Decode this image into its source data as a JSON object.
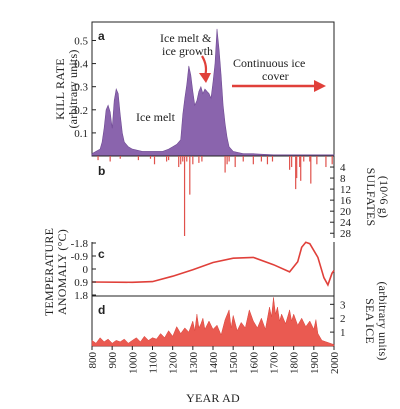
{
  "chart_data": [
    {
      "panel": "a",
      "type": "area",
      "ylabel": "KILL RATE",
      "ylabel_units": "(arbitrary units)",
      "yticks": [
        "0.1",
        "0.2",
        "0.3",
        "0.4",
        "0.5"
      ],
      "ylim": [
        0,
        0.58
      ],
      "color": "#8a64ad",
      "annotations": {
        "ice_melt": "Ice melt",
        "ice_melt_growth_1": "Ice melt &",
        "ice_melt_growth_2": "ice growth",
        "continuous_1": "Continuous ice",
        "continuous_2": "cover"
      },
      "points": [
        [
          800,
          0.01
        ],
        [
          820,
          0.02
        ],
        [
          840,
          0.03
        ],
        [
          850,
          0.06
        ],
        [
          860,
          0.12
        ],
        [
          870,
          0.2
        ],
        [
          880,
          0.22
        ],
        [
          890,
          0.19
        ],
        [
          900,
          0.12
        ],
        [
          910,
          0.24
        ],
        [
          920,
          0.29
        ],
        [
          930,
          0.27
        ],
        [
          940,
          0.18
        ],
        [
          950,
          0.1
        ],
        [
          960,
          0.06
        ],
        [
          980,
          0.04
        ],
        [
          1000,
          0.03
        ],
        [
          1050,
          0.02
        ],
        [
          1100,
          0.02
        ],
        [
          1150,
          0.02
        ],
        [
          1180,
          0.03
        ],
        [
          1200,
          0.04
        ],
        [
          1220,
          0.05
        ],
        [
          1240,
          0.07
        ],
        [
          1250,
          0.18
        ],
        [
          1260,
          0.25
        ],
        [
          1270,
          0.31
        ],
        [
          1280,
          0.39
        ],
        [
          1290,
          0.35
        ],
        [
          1300,
          0.28
        ],
        [
          1310,
          0.22
        ],
        [
          1320,
          0.24
        ],
        [
          1330,
          0.28
        ],
        [
          1340,
          0.3
        ],
        [
          1350,
          0.27
        ],
        [
          1360,
          0.29
        ],
        [
          1370,
          0.28
        ],
        [
          1380,
          0.27
        ],
        [
          1390,
          0.25
        ],
        [
          1400,
          0.32
        ],
        [
          1410,
          0.4
        ],
        [
          1420,
          0.55
        ],
        [
          1430,
          0.46
        ],
        [
          1440,
          0.35
        ],
        [
          1450,
          0.22
        ],
        [
          1460,
          0.14
        ],
        [
          1470,
          0.08
        ],
        [
          1480,
          0.04
        ],
        [
          1500,
          0.02
        ],
        [
          1550,
          0.01
        ],
        [
          1600,
          0.01
        ],
        [
          1700,
          0.005
        ],
        [
          1800,
          0.005
        ],
        [
          1900,
          0.005
        ],
        [
          2000,
          0.005
        ]
      ]
    },
    {
      "panel": "b",
      "type": "bar",
      "ylabel": "SULFATES",
      "ylabel_units": "(10^6 g)",
      "yticks": [
        "4",
        "8",
        "12",
        "16",
        "20",
        "24",
        "28"
      ],
      "ylim": [
        0,
        29
      ],
      "color": "#e0514b",
      "events": [
        [
          830,
          1.5
        ],
        [
          890,
          2
        ],
        [
          940,
          1
        ],
        [
          1030,
          1.5
        ],
        [
          1090,
          1
        ],
        [
          1110,
          3
        ],
        [
          1170,
          2
        ],
        [
          1180,
          1.5
        ],
        [
          1230,
          4
        ],
        [
          1240,
          3
        ],
        [
          1250,
          2
        ],
        [
          1259,
          29
        ],
        [
          1270,
          2
        ],
        [
          1285,
          14
        ],
        [
          1300,
          3
        ],
        [
          1330,
          2.5
        ],
        [
          1345,
          2
        ],
        [
          1460,
          6
        ],
        [
          1470,
          3
        ],
        [
          1480,
          2
        ],
        [
          1510,
          4
        ],
        [
          1550,
          2
        ],
        [
          1600,
          3
        ],
        [
          1640,
          2
        ],
        [
          1670,
          3
        ],
        [
          1695,
          2
        ],
        [
          1780,
          5
        ],
        [
          1790,
          4
        ],
        [
          1810,
          12
        ],
        [
          1815,
          8
        ],
        [
          1830,
          4
        ],
        [
          1835,
          9
        ],
        [
          1850,
          2
        ],
        [
          1880,
          2
        ],
        [
          1885,
          10
        ],
        [
          1915,
          3
        ],
        [
          1960,
          4
        ],
        [
          1991,
          3
        ]
      ]
    },
    {
      "panel": "c",
      "type": "line",
      "ylabel": "TEMPERATURE",
      "ylabel_units": "ANOMALY (°C)",
      "yticks": [
        "-1.8",
        "-0.9",
        "0",
        "0.9",
        "1.8"
      ],
      "ylim": [
        -1.8,
        1.8
      ],
      "color": "#e0403a",
      "points": [
        [
          800,
          0.9
        ],
        [
          1000,
          0.92
        ],
        [
          1100,
          0.87
        ],
        [
          1200,
          0.5
        ],
        [
          1300,
          0.05
        ],
        [
          1400,
          -0.45
        ],
        [
          1500,
          -0.75
        ],
        [
          1600,
          -0.8
        ],
        [
          1700,
          -0.3
        ],
        [
          1780,
          0.2
        ],
        [
          1820,
          -0.5
        ],
        [
          1840,
          -1.5
        ],
        [
          1860,
          -1.85
        ],
        [
          1880,
          -1.75
        ],
        [
          1920,
          -0.8
        ],
        [
          1950,
          0.6
        ],
        [
          1970,
          1.1
        ],
        [
          1990,
          0.3
        ],
        [
          2000,
          0.1
        ]
      ]
    },
    {
      "panel": "d",
      "type": "area",
      "ylabel": "SEA ICE",
      "ylabel_units": "(arbitrary units)",
      "yticks": [
        "1",
        "2",
        "3"
      ],
      "ylim": [
        0,
        3.6
      ],
      "color": "#ea5a51",
      "points": [
        [
          800,
          0.4
        ],
        [
          820,
          0.2
        ],
        [
          840,
          0.6
        ],
        [
          860,
          0.3
        ],
        [
          880,
          0.5
        ],
        [
          900,
          0.2
        ],
        [
          920,
          0.4
        ],
        [
          940,
          0.3
        ],
        [
          960,
          0.5
        ],
        [
          980,
          0.2
        ],
        [
          1000,
          0.4
        ],
        [
          1020,
          0.6
        ],
        [
          1040,
          0.3
        ],
        [
          1060,
          0.7
        ],
        [
          1080,
          0.4
        ],
        [
          1100,
          0.6
        ],
        [
          1120,
          0.5
        ],
        [
          1140,
          0.9
        ],
        [
          1160,
          0.6
        ],
        [
          1180,
          1.1
        ],
        [
          1200,
          0.7
        ],
        [
          1220,
          1.4
        ],
        [
          1240,
          0.9
        ],
        [
          1260,
          1.3
        ],
        [
          1280,
          1.0
        ],
        [
          1300,
          1.8
        ],
        [
          1310,
          1.1
        ],
        [
          1320,
          2.3
        ],
        [
          1330,
          1.3
        ],
        [
          1340,
          1.6
        ],
        [
          1350,
          2.0
        ],
        [
          1360,
          1.2
        ],
        [
          1380,
          1.8
        ],
        [
          1400,
          1.2
        ],
        [
          1420,
          1.5
        ],
        [
          1440,
          0.8
        ],
        [
          1460,
          1.9
        ],
        [
          1480,
          2.6
        ],
        [
          1490,
          1.3
        ],
        [
          1500,
          2.2
        ],
        [
          1520,
          1.1
        ],
        [
          1540,
          1.7
        ],
        [
          1560,
          1.3
        ],
        [
          1580,
          2.6
        ],
        [
          1600,
          1.8
        ],
        [
          1620,
          1.3
        ],
        [
          1640,
          2.0
        ],
        [
          1660,
          1.2
        ],
        [
          1680,
          2.8
        ],
        [
          1690,
          2.1
        ],
        [
          1700,
          3.5
        ],
        [
          1710,
          2.3
        ],
        [
          1720,
          2.8
        ],
        [
          1730,
          1.8
        ],
        [
          1740,
          2.3
        ],
        [
          1760,
          1.6
        ],
        [
          1780,
          2.6
        ],
        [
          1790,
          1.8
        ],
        [
          1800,
          2.3
        ],
        [
          1820,
          1.5
        ],
        [
          1840,
          2.0
        ],
        [
          1860,
          1.4
        ],
        [
          1880,
          1.8
        ],
        [
          1900,
          1.2
        ],
        [
          1910,
          1.9
        ],
        [
          1920,
          0.9
        ],
        [
          1940,
          0.4
        ],
        [
          1960,
          0.3
        ],
        [
          1980,
          0.2
        ],
        [
          2000,
          0.1
        ]
      ]
    }
  ],
  "xaxis": {
    "title": "YEAR AD",
    "ticks": [
      "800",
      "900",
      "1000",
      "1100",
      "1200",
      "1300",
      "1400",
      "1500",
      "1600",
      "1700",
      "1800",
      "1900",
      "2000"
    ],
    "xlim": [
      800,
      2000
    ]
  }
}
